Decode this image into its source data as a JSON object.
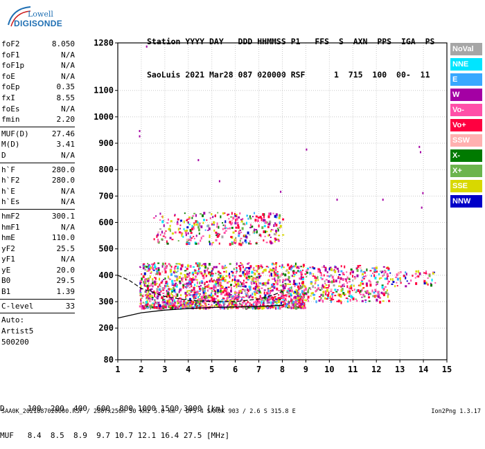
{
  "logo": {
    "line1": "Lowell",
    "line2": "DIGISONDE"
  },
  "header": {
    "line1": "Station YYYY DAY   DDD HHMMSS P1   FFS  S  AXN  PPS  IGA  PS",
    "line2": "SaoLuis 2021 Mar28 087 020000 RSF      1  715  100  00-  11"
  },
  "params": [
    {
      "name": "foF2",
      "value": "8.050"
    },
    {
      "name": "foF1",
      "value": "N/A"
    },
    {
      "name": "foF1p",
      "value": "N/A"
    },
    {
      "name": "foE",
      "value": "N/A"
    },
    {
      "name": "foEp",
      "value": "0.35"
    },
    {
      "name": "fxI",
      "value": "8.55"
    },
    {
      "name": "foEs",
      "value": "N/A"
    },
    {
      "name": "fmin",
      "value": "2.20"
    },
    {
      "sep": true
    },
    {
      "name": "MUF(D)",
      "value": "27.46"
    },
    {
      "name": "M(D)",
      "value": "3.41"
    },
    {
      "name": "D",
      "value": "N/A"
    },
    {
      "sep": true
    },
    {
      "name": "h`F",
      "value": "280.0"
    },
    {
      "name": "h`F2",
      "value": "280.0"
    },
    {
      "name": "h`E",
      "value": "N/A"
    },
    {
      "name": "h`Es",
      "value": "N/A"
    },
    {
      "sep": true
    },
    {
      "name": "hmF2",
      "value": "300.1"
    },
    {
      "name": "hmF1",
      "value": "N/A"
    },
    {
      "name": "hmE",
      "value": "110.0"
    },
    {
      "name": "yF2",
      "value": "25.5"
    },
    {
      "name": "yF1",
      "value": "N/A"
    },
    {
      "name": "yE",
      "value": "20.0"
    },
    {
      "name": "B0",
      "value": "29.5"
    },
    {
      "name": "B1",
      "value": "1.39"
    },
    {
      "sep": true
    },
    {
      "name": "C-level",
      "value": "33"
    },
    {
      "sep": true
    },
    {
      "text": "Auto:"
    },
    {
      "text": "Artist5"
    },
    {
      "text": "500200"
    }
  ],
  "legend": [
    {
      "label": "NoVal",
      "color": "#a6a6a6"
    },
    {
      "label": "NNE",
      "color": "#00e5ff"
    },
    {
      "label": "E",
      "color": "#38a8ff"
    },
    {
      "label": "W",
      "color": "#a400a4"
    },
    {
      "label": "Vo-",
      "color": "#ff4fa8"
    },
    {
      "label": "Vo+",
      "color": "#ff0040"
    },
    {
      "label": "SSW",
      "color": "#ffb0b0"
    },
    {
      "label": "X-",
      "color": "#007a00"
    },
    {
      "label": "X+",
      "color": "#6cb44c"
    },
    {
      "label": "SSE",
      "color": "#d8d800"
    },
    {
      "label": "NNW",
      "color": "#0000c8"
    }
  ],
  "chart_data": {
    "type": "scatter",
    "xlim": [
      1,
      15
    ],
    "ylim": [
      80,
      1280
    ],
    "x_ticks": [
      "1",
      "2",
      "3",
      "4",
      "5",
      "6",
      "7",
      "8",
      "9",
      "10",
      "11",
      "12",
      "13",
      "14",
      "15"
    ],
    "y_ticks": [
      "80",
      "200",
      "300",
      "400",
      "500",
      "600",
      "700",
      "800",
      "900",
      "1000",
      "1100",
      "1280"
    ],
    "grid": true,
    "regions": [
      {
        "x": [
          1.9,
          9.0
        ],
        "y": [
          280,
          450
        ],
        "density": "high"
      },
      {
        "x": [
          2.5,
          8.0
        ],
        "y": [
          520,
          640
        ],
        "density": "medium"
      },
      {
        "x": [
          9.0,
          12.5
        ],
        "y": [
          300,
          440
        ],
        "density": "medium"
      },
      {
        "x": [
          12.5,
          14.5
        ],
        "y": [
          360,
          420
        ],
        "density": "low"
      }
    ],
    "trace": {
      "x": [
        1,
        2,
        3,
        4,
        5,
        6,
        7,
        8,
        8.05
      ],
      "y": [
        238,
        258,
        268,
        274,
        278,
        280,
        282,
        286,
        290
      ]
    },
    "profile": {
      "x": [
        1.0,
        1.5,
        2.0,
        3.0,
        4.0,
        5.0,
        6.0,
        7.0,
        7.6,
        8.05
      ],
      "y": [
        400,
        380,
        350,
        320,
        305,
        300,
        300,
        310,
        325,
        340
      ]
    }
  },
  "footer": {
    "line1": "D     100  200  400  600  800 1000 1500 3000 [km]",
    "line2": "MUF   8.4  8.5  8.9  9.7 10.7 12.1 16.4 27.5 [MHz]",
    "line3": "SAA0K_2021087020000.RSF / 280fx256h 50 kHz 5.0 km / DPS-4 SAA0K 903 / 2.6 S 315.8 E",
    "version": "Ion2Png 1.3.17"
  }
}
